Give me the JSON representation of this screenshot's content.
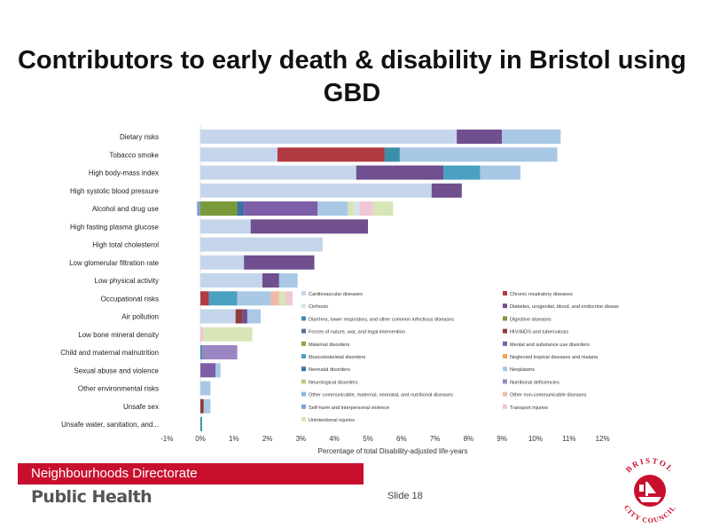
{
  "title": "Contributors to early death & disability in Bristol using GBD",
  "footer": {
    "directorate": "Neighbourhoods Directorate",
    "unit": "Public Health",
    "slide": "Slide 18",
    "logo_text_top": "BRISTOL",
    "logo_text_bottom": "CITY COUNCIL"
  },
  "colors": {
    "Cardiovascular diseases": "#c5d6ec",
    "Chronic respiratory diseases": "#b33a42",
    "Cirrhosis": "#d8e3f1",
    "Diabetes, urogenital, blood, and endocrine diseases": "#6f4f8e",
    "Diarrhea, lower respiratory, and other common infectious diseases": "#3c8fa8",
    "Digestive diseases": "#7a9a3a",
    "Forces of nature, war, and legal intervention": "#5b6f9a",
    "HIV/AIDS and tuberculosis": "#8d3b3b",
    "Maternal disorders": "#8ba347",
    "Mental and substance use disorders": "#7c5fa6",
    "Musculoskeletal disorders": "#4aa1c2",
    "Neglected tropical diseases and malaria": "#f0a45a",
    "Neonatal disorders": "#3f6fa8",
    "Neoplasms": "#a8c8e6",
    "Neurological disorders": "#b9cf7f",
    "Nutritional deficiencies": "#9b86c3",
    "Other communicable, maternal, neonatal, and nutritional diseases": "#8fb6dc",
    "Other non-communicable diseases": "#f2b8a6",
    "Self-harm and interpersonal violence": "#7fa2cf",
    "Transport injuries": "#f1c6d4",
    "Unintentional injuries": "#d7e5b7"
  },
  "chart_data": {
    "type": "bar",
    "orientation": "horizontal",
    "stacked": true,
    "title": "",
    "xlabel": "Percentage of total Disability-adjusted life-years",
    "ylabel": "",
    "xlim": [
      -1,
      12
    ],
    "xticks": [
      "-1%",
      "0%",
      "1%",
      "2%",
      "3%",
      "4%",
      "5%",
      "6%",
      "7%",
      "8%",
      "9%",
      "10%",
      "11%",
      "12%"
    ],
    "categories": [
      "Dietary risks",
      "Tobacco smoke",
      "High body-mass index",
      "High systolic blood pressure",
      "Alcohol and drug use",
      "High fasting plasma glucose",
      "High total cholesterol",
      "Low glomerular filtration rate",
      "Low physical activity",
      "Occupational risks",
      "Air pollution",
      "Low bone mineral density",
      "Child and maternal malnutrition",
      "Sexual abuse and violence",
      "Other environmental risks",
      "Unsafe sex",
      "Unsafe water, sanitation, and..."
    ],
    "legend_labels": [
      "Cardiovascular diseases",
      "Chronic respiratory diseases",
      "Cirrhosis",
      "Diabetes, urogenital, blood, and endocrine diseases",
      "Diarrhea, lower respiratory, and other common infectious diseases",
      "Digestive diseases",
      "Forces of nature, war, and legal intervention",
      "HIV/AIDS and tuberculosis",
      "Maternal disorders",
      "Mental and substance use disorders",
      "Musculoskeletal disorders",
      "Neglected tropical diseases and malaria",
      "Neonatal disorders",
      "Neoplasms",
      "Neurological disorders",
      "Nutritional deficiencies",
      "Other communicable, maternal, neonatal, and nutritional diseases",
      "Other non-communicable diseases",
      "Self-harm and interpersonal violence",
      "Transport injuries",
      "Unintentional injuries"
    ],
    "legend_placement": "inside lower-right",
    "bars": [
      [
        {
          "s": "Cardiovascular diseases",
          "v": 7.65
        },
        {
          "s": "Diabetes, urogenital, blood, and endocrine diseases",
          "v": 1.35
        },
        {
          "s": "Neoplasms",
          "v": 1.75
        }
      ],
      [
        {
          "s": "Cardiovascular diseases",
          "v": 2.3
        },
        {
          "s": "Chronic respiratory diseases",
          "v": 3.2
        },
        {
          "s": "Diarrhea, lower respiratory, and other common infectious diseases",
          "v": 0.45
        },
        {
          "s": "Neoplasms",
          "v": 4.7
        }
      ],
      [
        {
          "s": "Cardiovascular diseases",
          "v": 4.65
        },
        {
          "s": "Diabetes, urogenital, blood, and endocrine diseases",
          "v": 2.6
        },
        {
          "s": "Musculoskeletal disorders",
          "v": 1.1
        },
        {
          "s": "Neoplasms",
          "v": 1.2
        }
      ],
      [
        {
          "s": "Cardiovascular diseases",
          "v": 6.9
        },
        {
          "s": "Diabetes, urogenital, blood, and endocrine diseases",
          "v": 0.9
        }
      ],
      [
        {
          "s": "Self-harm and interpersonal violence",
          "v": -0.1
        },
        {
          "s": "Digestive diseases",
          "v": 1.1
        },
        {
          "s": "Neonatal disorders",
          "v": 0.2
        },
        {
          "s": "Mental and substance use disorders",
          "v": 2.2
        },
        {
          "s": "Neoplasms",
          "v": 0.9
        },
        {
          "s": "Unintentional injuries",
          "v": 0.2
        },
        {
          "s": "Cirrhosis",
          "v": 0.15
        },
        {
          "s": "Transport injuries",
          "v": 0.4
        },
        {
          "s": "Unintentional injuries",
          "v": 0.6
        }
      ],
      [
        {
          "s": "Cardiovascular diseases",
          "v": 1.5
        },
        {
          "s": "Diabetes, urogenital, blood, and endocrine diseases",
          "v": 3.5
        }
      ],
      [
        {
          "s": "Cardiovascular diseases",
          "v": 3.65
        }
      ],
      [
        {
          "s": "Cardiovascular diseases",
          "v": 1.3
        },
        {
          "s": "Diabetes, urogenital, blood, and endocrine diseases",
          "v": 2.1
        }
      ],
      [
        {
          "s": "Cardiovascular diseases",
          "v": 1.85
        },
        {
          "s": "Diabetes, urogenital, blood, and endocrine diseases",
          "v": 0.5
        },
        {
          "s": "Neoplasms",
          "v": 0.55
        }
      ],
      [
        {
          "s": "Chronic respiratory diseases",
          "v": 0.25
        },
        {
          "s": "Musculoskeletal disorders",
          "v": 0.85
        },
        {
          "s": "Neoplasms",
          "v": 1.0
        },
        {
          "s": "Other non-communicable diseases",
          "v": 0.25
        },
        {
          "s": "Unintentional injuries",
          "v": 0.2
        },
        {
          "s": "Transport injuries",
          "v": 0.2
        }
      ],
      [
        {
          "s": "Cardiovascular diseases",
          "v": 1.05
        },
        {
          "s": "HIV/AIDS and tuberculosis",
          "v": 0.2
        },
        {
          "s": "Diabetes, urogenital, blood, and endocrine diseases",
          "v": 0.15
        },
        {
          "s": "Neoplasms",
          "v": 0.4
        }
      ],
      [
        {
          "s": "Transport injuries",
          "v": 0.1
        },
        {
          "s": "Unintentional injuries",
          "v": 1.45
        }
      ],
      [
        {
          "s": "Diarrhea, lower respiratory, and other common infectious diseases",
          "v": 0.05
        },
        {
          "s": "Nutritional deficiencies",
          "v": 1.05
        }
      ],
      [
        {
          "s": "Mental and substance use disorders",
          "v": 0.45
        },
        {
          "s": "Neoplasms",
          "v": 0.15
        }
      ],
      [
        {
          "s": "Neoplasms",
          "v": 0.3
        }
      ],
      [
        {
          "s": "HIV/AIDS and tuberculosis",
          "v": 0.1
        },
        {
          "s": "Neoplasms",
          "v": 0.2
        }
      ],
      [
        {
          "s": "Diarrhea, lower respiratory, and other common infectious diseases",
          "v": 0.05
        }
      ]
    ]
  }
}
